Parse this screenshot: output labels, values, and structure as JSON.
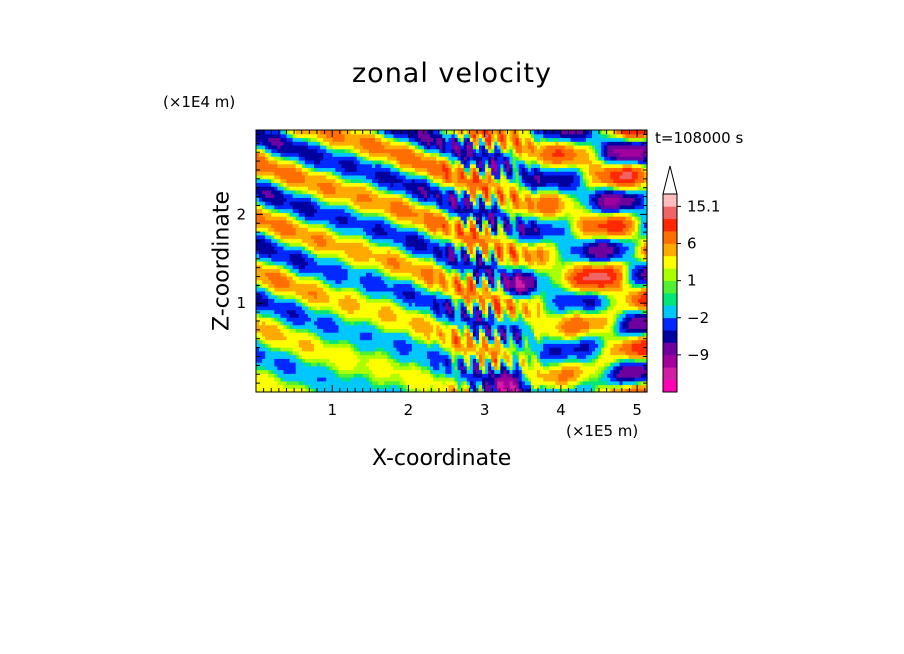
{
  "chart_data": {
    "type": "heatmap",
    "title": "zonal velocity",
    "xlabel": "X-coordinate",
    "ylabel": "Z-coordinate",
    "x_exponent_label": "(×1E5 m)",
    "y_exponent_label": "(×1E4 m)",
    "time_label": "t=108000 s",
    "xlim": [
      0,
      5.13
    ],
    "ylim": [
      0,
      2.95
    ],
    "x_ticks": [
      1,
      2,
      3,
      4,
      5
    ],
    "x_tick_labels": [
      "1",
      "2",
      "3",
      "4",
      "5"
    ],
    "y_ticks": [
      1,
      2
    ],
    "y_tick_labels": [
      "1",
      "2"
    ],
    "colorbar": {
      "tick_labels": [
        {
          "value": 15.1,
          "label": "15.1"
        },
        {
          "value": 6,
          "label": "6"
        },
        {
          "value": 1,
          "label": "1"
        },
        {
          "value": -2,
          "label": "−2"
        },
        {
          "value": -9,
          "label": "−9"
        }
      ],
      "levels": [
        -20,
        -15,
        -12,
        -9,
        -6,
        -4,
        -2,
        0,
        0.5,
        1,
        2,
        4,
        6,
        9,
        12,
        15.1,
        20
      ],
      "colors": [
        "#ff00b4",
        "#d21ea5",
        "#a0009b",
        "#6e00a0",
        "#0000a0",
        "#0028ff",
        "#00c8ff",
        "#00e678",
        "#50f032",
        "#aaff00",
        "#ffff00",
        "#ffaa00",
        "#ff6e00",
        "#ff2800",
        "#f06464",
        "#ffbebe"
      ],
      "extend": "max"
    }
  }
}
